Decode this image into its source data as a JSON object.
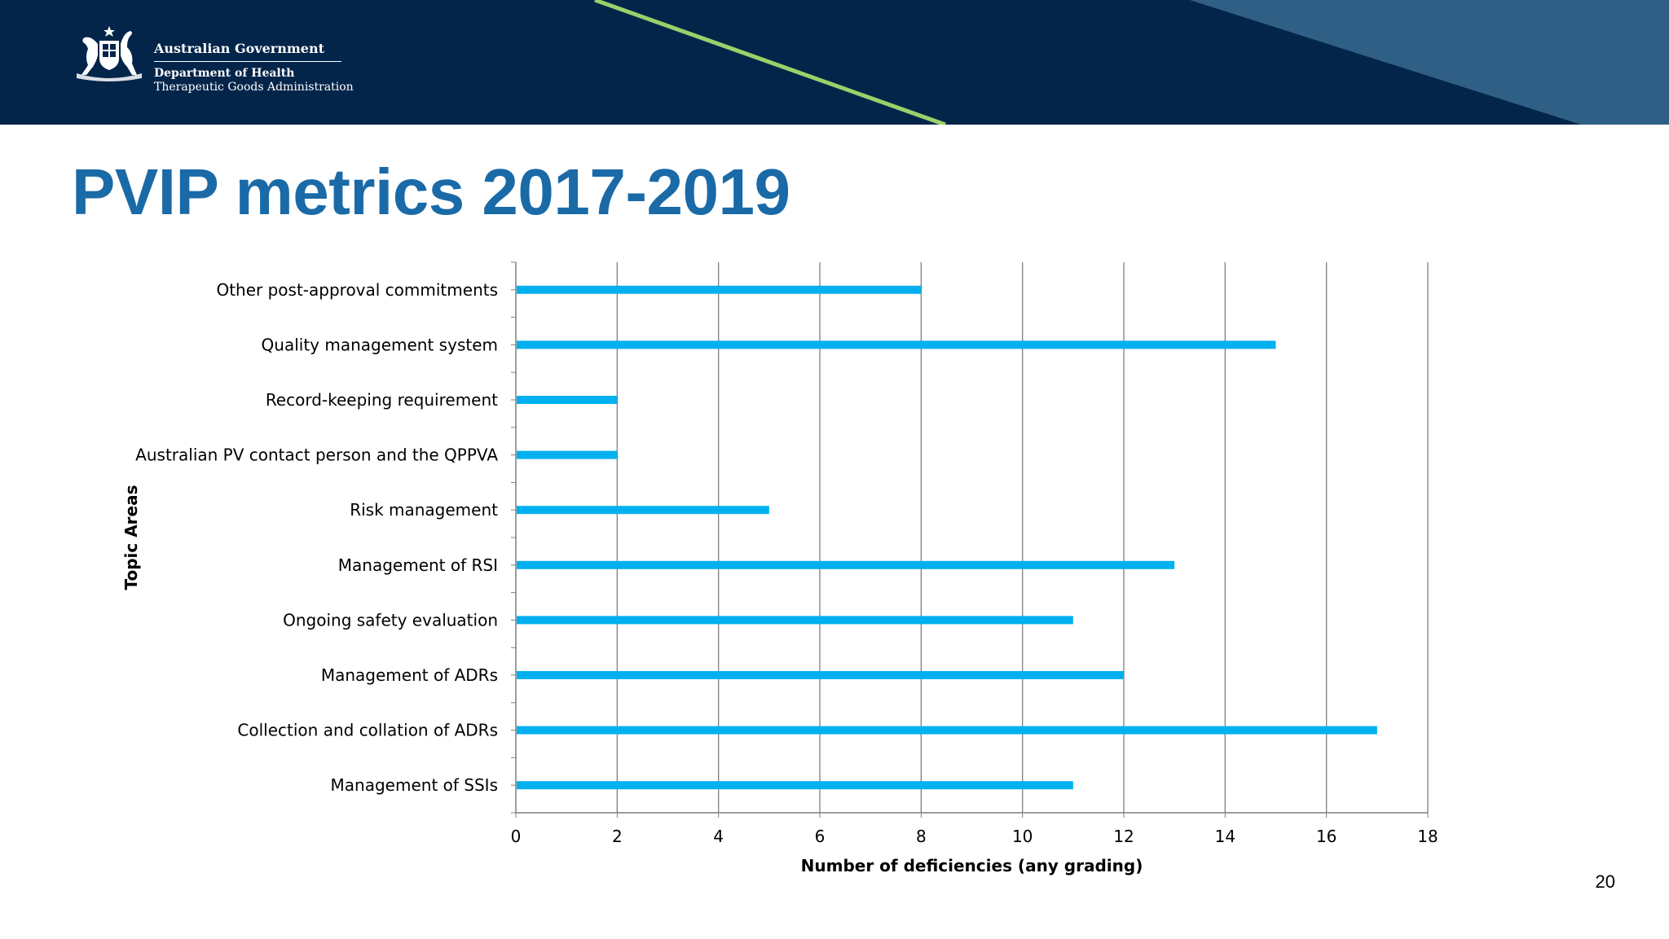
{
  "header": {
    "organisation": {
      "line1": "Australian Government",
      "line2": "Department of Health",
      "line3": "Therapeutic Goods Administration"
    },
    "colors": {
      "band_dark": "#04254a",
      "band_light": "#2f5f85",
      "accent_stripe": "#9bd16a",
      "white": "#ffffff"
    },
    "logo_icon": "commonwealth-coat-of-arms-icon"
  },
  "slide": {
    "title": "PVIP metrics 2017-2019",
    "title_color": "#1a6aa8",
    "page_number": "20"
  },
  "chart_data": {
    "type": "bar",
    "orientation": "horizontal",
    "title": "",
    "xlabel": "Number of deficiencies (any grading)",
    "ylabel": "Topic Areas",
    "xlim": [
      0,
      18
    ],
    "xticks": [
      0,
      2,
      4,
      6,
      8,
      10,
      12,
      14,
      16,
      18
    ],
    "grid": "vertical major gridlines",
    "legend": "none",
    "bar_color": "#00b0ef",
    "categories": [
      "Other post-approval commitments",
      "Quality management system",
      "Record-keeping requirement",
      "Australian PV contact person and the QPPVA",
      "Risk management",
      "Management of RSI",
      "Ongoing safety evaluation",
      "Management of ADRs",
      "Collection and collation of ADRs",
      "Management of SSIs"
    ],
    "values": [
      8,
      15,
      2,
      2,
      5,
      13,
      11,
      12,
      17,
      11
    ]
  }
}
